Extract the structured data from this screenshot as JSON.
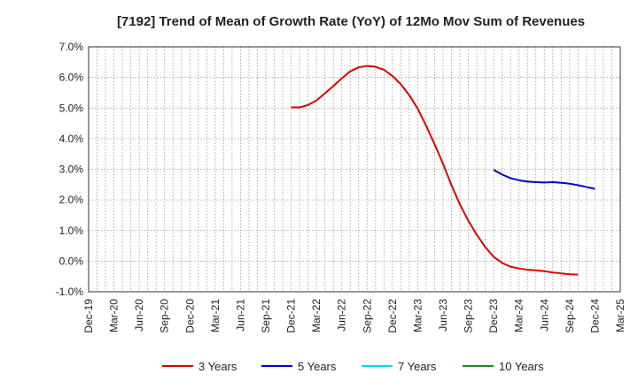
{
  "chart_data": {
    "type": "line",
    "title": "[7192]  Trend of Mean of Growth Rate (YoY) of 12Mo Mov Sum of Revenues",
    "xlabel": "",
    "ylabel": "",
    "ylim": [
      -1.0,
      7.0
    ],
    "yticks": [
      "7.0%",
      "6.0%",
      "5.0%",
      "4.0%",
      "3.0%",
      "2.0%",
      "1.0%",
      "0.0%",
      "-1.0%"
    ],
    "ytick_values": [
      7,
      6,
      5,
      4,
      3,
      2,
      1,
      0,
      -1
    ],
    "x_categories": [
      "Dec-19",
      "Mar-20",
      "Jun-20",
      "Sep-20",
      "Dec-20",
      "Mar-21",
      "Jun-21",
      "Sep-21",
      "Dec-21",
      "Mar-22",
      "Jun-22",
      "Sep-22",
      "Dec-22",
      "Mar-23",
      "Jun-23",
      "Sep-23",
      "Dec-23",
      "Mar-24",
      "Jun-24",
      "Sep-24",
      "Dec-24",
      "Mar-25"
    ],
    "grid": true,
    "series": [
      {
        "name": "3 Years",
        "color": "#dd0000",
        "start_index": 24,
        "values": [
          5.02,
          5.02,
          5.1,
          5.25,
          5.48,
          5.72,
          5.97,
          6.2,
          6.33,
          6.38,
          6.35,
          6.25,
          6.05,
          5.78,
          5.42,
          4.98,
          4.42,
          3.82,
          3.18,
          2.48,
          1.85,
          1.32,
          0.86,
          0.46,
          0.14,
          -0.06,
          -0.18,
          -0.24,
          -0.28,
          -0.3,
          -0.33,
          -0.37,
          -0.4,
          -0.43,
          -0.44
        ]
      },
      {
        "name": "5 Years",
        "color": "#0000cc",
        "start_index": 48,
        "values": [
          2.98,
          2.83,
          2.71,
          2.64,
          2.6,
          2.58,
          2.57,
          2.58,
          2.56,
          2.53,
          2.48,
          2.42,
          2.36
        ]
      },
      {
        "name": "7 Years",
        "color": "#00dddd",
        "start_index": null,
        "values": []
      },
      {
        "name": "10 Years",
        "color": "#228822",
        "start_index": null,
        "values": []
      }
    ]
  }
}
